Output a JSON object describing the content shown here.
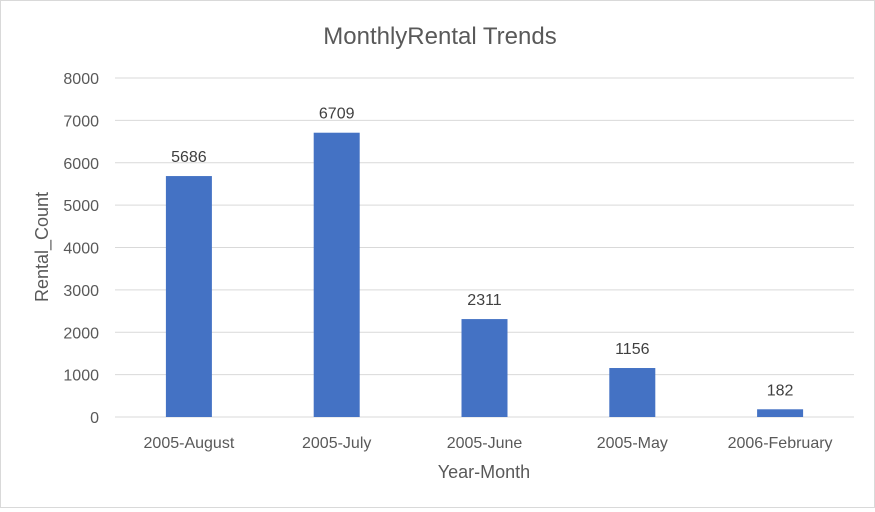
{
  "chart_data": {
    "type": "bar",
    "title": "MonthlyRental Trends",
    "xlabel": "Year-Month",
    "ylabel": "Rental_Count",
    "categories": [
      "2005-August",
      "2005-July",
      "2005-June",
      "2005-May",
      "2006-February"
    ],
    "values": [
      5686,
      6709,
      2311,
      1156,
      182
    ],
    "data_labels": [
      "5686",
      "6709",
      "2311",
      "1156",
      "182"
    ],
    "ylim": [
      0,
      8000
    ],
    "yticks": [
      0,
      1000,
      2000,
      3000,
      4000,
      5000,
      6000,
      7000,
      8000
    ],
    "ytick_labels": [
      "0",
      "1000",
      "2000",
      "3000",
      "4000",
      "5000",
      "6000",
      "7000",
      "8000"
    ],
    "grid": true,
    "legend": "none",
    "colors": {
      "bar": "#4472C4",
      "grid": "#d9d9d9",
      "text": "#595959"
    }
  }
}
